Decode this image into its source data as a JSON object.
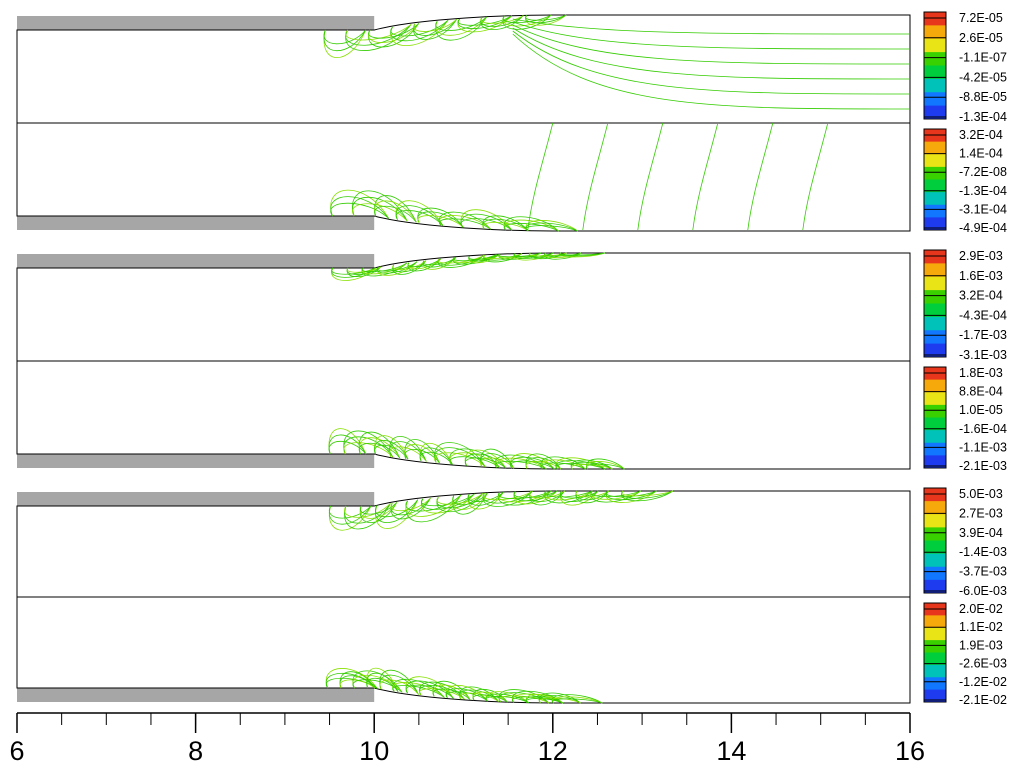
{
  "chart_data": {
    "type": "contour",
    "x_axis": {
      "range": [
        6,
        16
      ],
      "major_ticks": [
        6,
        8,
        10,
        12,
        14,
        16
      ],
      "tick_labels": [
        "6",
        "8",
        "10",
        "12",
        "14",
        "16"
      ],
      "minor_step": 0.5
    },
    "geometry": {
      "nozzle_lip_end_x": 10,
      "transition_end_x": 12
    },
    "panels": [
      {
        "halves": [
          {
            "wall": "top",
            "colorbar": [
              "7.2E-05",
              "2.6E-05",
              "-1.1E-07",
              "-4.2E-05",
              "-8.8E-05",
              "-1.3E-04"
            ]
          },
          {
            "wall": "bottom",
            "colorbar": [
              "3.2E-04",
              "1.4E-04",
              "-7.2E-08",
              "-1.3E-04",
              "-3.1E-04",
              "-4.9E-04"
            ]
          }
        ]
      },
      {
        "halves": [
          {
            "wall": "top",
            "colorbar": [
              "2.9E-03",
              "1.6E-03",
              "3.2E-04",
              "-4.3E-04",
              "-1.7E-03",
              "-3.1E-03"
            ]
          },
          {
            "wall": "bottom",
            "colorbar": [
              "1.8E-03",
              "8.8E-04",
              "1.0E-05",
              "-1.6E-04",
              "-1.1E-03",
              "-2.1E-03"
            ]
          }
        ]
      },
      {
        "halves": [
          {
            "wall": "top",
            "colorbar": [
              "5.0E-03",
              "2.7E-03",
              "3.9E-04",
              "-1.4E-03",
              "-3.7E-03",
              "-6.0E-03"
            ]
          },
          {
            "wall": "bottom",
            "colorbar": [
              "2.0E-02",
              "1.1E-02",
              "1.9E-03",
              "-2.6E-03",
              "-1.2E-02",
              "-2.1E-02"
            ]
          }
        ]
      }
    ],
    "colors": {
      "wall": "#a6a6a6",
      "contour_main": "#33cc00",
      "contour_alt": "#88e000",
      "colorbar": [
        "#e8361c",
        "#f6a90a",
        "#e8e415",
        "#39d200",
        "#00ce3c",
        "#00c2b8",
        "#1177ff",
        "#1f3bf0"
      ]
    }
  }
}
